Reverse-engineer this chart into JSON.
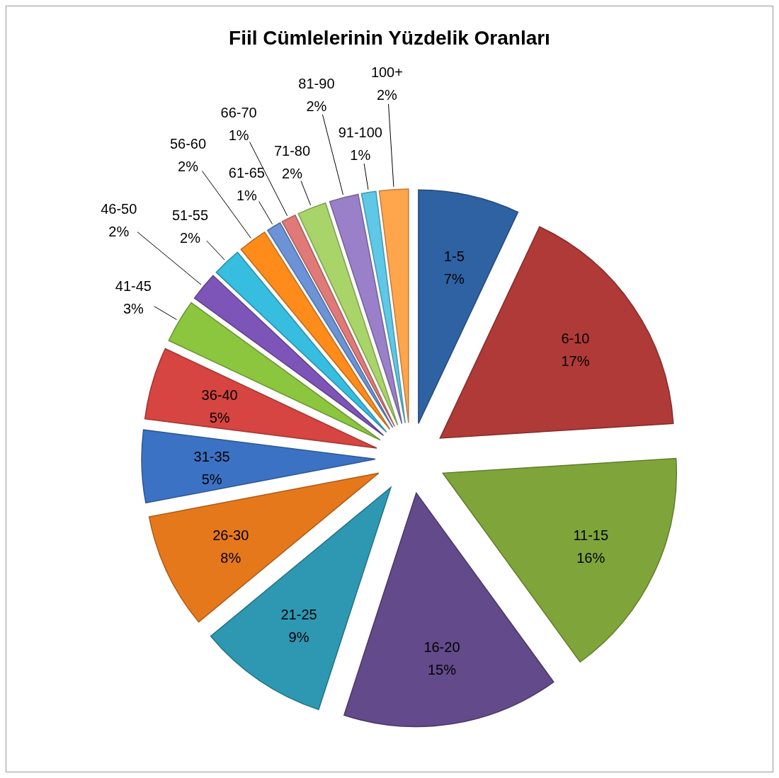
{
  "chart_data": {
    "type": "pie",
    "title": "Fiil Cümlelerinin Yüzdelik Oranları",
    "categories": [
      "1-5",
      "6-10",
      "11-15",
      "16-20",
      "21-25",
      "26-30",
      "31-35",
      "36-40",
      "41-45",
      "46-50",
      "51-55",
      "56-60",
      "61-65",
      "66-70",
      "71-80",
      "81-90",
      "91-100",
      "100+"
    ],
    "values": [
      7,
      17,
      16,
      15,
      9,
      8,
      5,
      5,
      3,
      2,
      2,
      2,
      1,
      1,
      2,
      2,
      1,
      2
    ],
    "value_labels": [
      "7%",
      "17%",
      "16%",
      "15%",
      "9%",
      "8%",
      "5%",
      "5%",
      "3%",
      "2%",
      "2%",
      "2%",
      "1%",
      "1%",
      "2%",
      "2%",
      "1%",
      "2%"
    ],
    "colors": [
      "#2f62a3",
      "#b03a37",
      "#7fa53a",
      "#634a8a",
      "#2e98b3",
      "#e6781c",
      "#3c72c4",
      "#d64541",
      "#8cc63f",
      "#7d55b8",
      "#36bde0",
      "#ff8c1a",
      "#6b93d6",
      "#e07a78",
      "#a8d46a",
      "#9a80c8",
      "#5ec8e6",
      "#ffa64d"
    ],
    "data_labels": true
  }
}
